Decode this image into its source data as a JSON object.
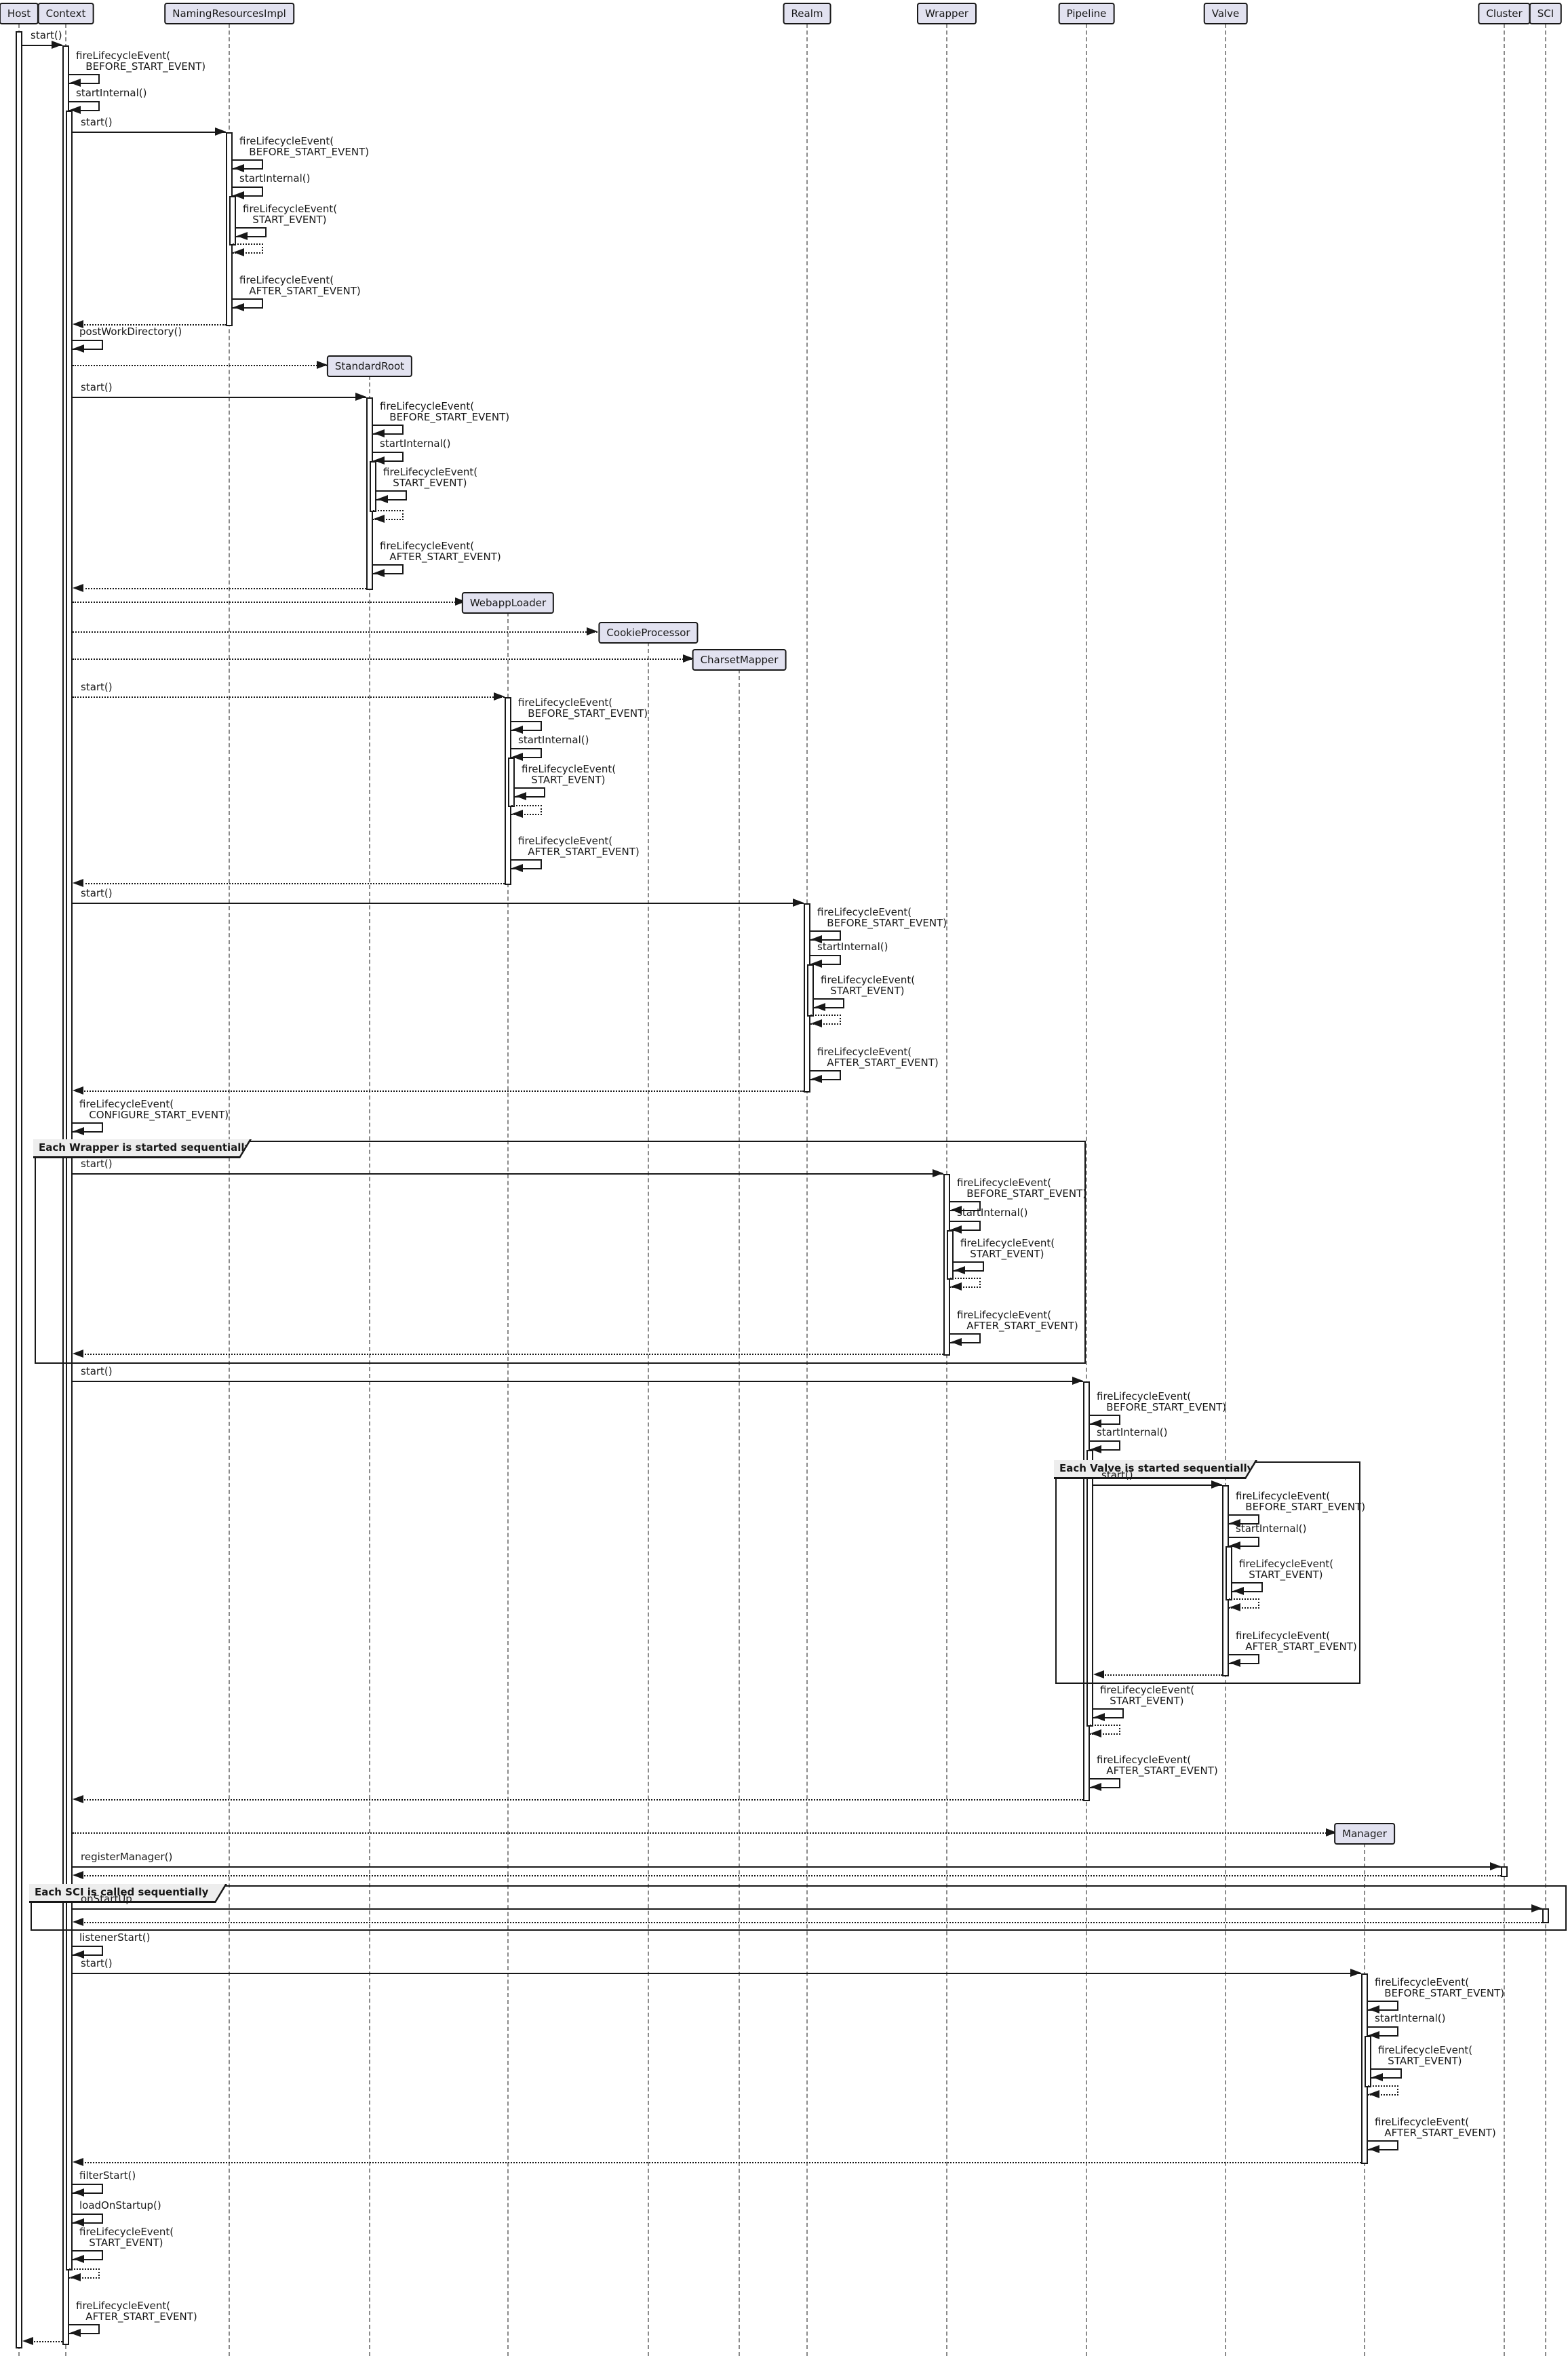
{
  "diagram": {
    "type": "uml-sequence",
    "participants": [
      {
        "name": "Host"
      },
      {
        "name": "Context"
      },
      {
        "name": "NamingResourcesImpl"
      },
      {
        "name": "Realm"
      },
      {
        "name": "Wrapper"
      },
      {
        "name": "Pipeline"
      },
      {
        "name": "Valve"
      },
      {
        "name": "Cluster"
      },
      {
        "name": "SCI"
      }
    ],
    "created": [
      {
        "name": "StandardRoot"
      },
      {
        "name": "WebappLoader"
      },
      {
        "name": "CookieProcessor"
      },
      {
        "name": "CharsetMapper"
      },
      {
        "name": "Manager"
      }
    ],
    "frames": [
      {
        "label": "Each Wrapper is started sequentially"
      },
      {
        "label": "Each Valve is started sequentially"
      },
      {
        "label": "Each SCI is called sequentially"
      }
    ],
    "colors": {
      "participant_fill": "#E2E2F0",
      "border": "#181818",
      "frame_label_fill": "#EDEDED",
      "background": "#FFFFFF"
    },
    "messages": [
      {
        "from": "Host",
        "to": "Context",
        "label": "start()",
        "kind": "call"
      },
      {
        "from": "Context",
        "to": "Context",
        "label": "fireLifecycleEvent(\n   BEFORE_START_EVENT)",
        "kind": "self"
      },
      {
        "from": "Context",
        "to": "Context",
        "label": "startInternal()",
        "kind": "self"
      },
      {
        "from": "Context",
        "to": "NamingResourcesImpl",
        "label": "start()",
        "kind": "call"
      },
      {
        "from": "NamingResourcesImpl",
        "to": "NamingResourcesImpl",
        "label": "fireLifecycleEvent(\n   BEFORE_START_EVENT)",
        "kind": "self"
      },
      {
        "from": "NamingResourcesImpl",
        "to": "NamingResourcesImpl",
        "label": "startInternal()",
        "kind": "self"
      },
      {
        "from": "NamingResourcesImpl",
        "to": "NamingResourcesImpl",
        "label": "fireLifecycleEvent(\n   START_EVENT)",
        "kind": "self"
      },
      {
        "from": "NamingResourcesImpl",
        "to": "NamingResourcesImpl",
        "label": "",
        "kind": "self-return"
      },
      {
        "from": "NamingResourcesImpl",
        "to": "NamingResourcesImpl",
        "label": "fireLifecycleEvent(\n   AFTER_START_EVENT)",
        "kind": "self"
      },
      {
        "from": "NamingResourcesImpl",
        "to": "Context",
        "label": "",
        "kind": "return"
      },
      {
        "from": "Context",
        "to": "Context",
        "label": "postWorkDirectory()",
        "kind": "self"
      },
      {
        "from": "Context",
        "to": "StandardRoot",
        "label": "",
        "kind": "create"
      },
      {
        "from": "Context",
        "to": "StandardRoot",
        "label": "start()",
        "kind": "call"
      },
      {
        "from": "StandardRoot",
        "to": "StandardRoot",
        "label": "fireLifecycleEvent(\n   BEFORE_START_EVENT)",
        "kind": "self"
      },
      {
        "from": "StandardRoot",
        "to": "StandardRoot",
        "label": "startInternal()",
        "kind": "self"
      },
      {
        "from": "StandardRoot",
        "to": "StandardRoot",
        "label": "fireLifecycleEvent(\n   START_EVENT)",
        "kind": "self"
      },
      {
        "from": "StandardRoot",
        "to": "StandardRoot",
        "label": "",
        "kind": "self-return"
      },
      {
        "from": "StandardRoot",
        "to": "StandardRoot",
        "label": "fireLifecycleEvent(\n   AFTER_START_EVENT)",
        "kind": "self"
      },
      {
        "from": "StandardRoot",
        "to": "Context",
        "label": "",
        "kind": "return"
      },
      {
        "from": "Context",
        "to": "WebappLoader",
        "label": "",
        "kind": "create"
      },
      {
        "from": "Context",
        "to": "CookieProcessor",
        "label": "",
        "kind": "create"
      },
      {
        "from": "Context",
        "to": "CharsetMapper",
        "label": "",
        "kind": "create"
      },
      {
        "from": "Context",
        "to": "WebappLoader",
        "label": "start()",
        "kind": "call-dotted"
      },
      {
        "from": "WebappLoader",
        "to": "WebappLoader",
        "label": "fireLifecycleEvent(\n   BEFORE_START_EVENT)",
        "kind": "self"
      },
      {
        "from": "WebappLoader",
        "to": "WebappLoader",
        "label": "startInternal()",
        "kind": "self"
      },
      {
        "from": "WebappLoader",
        "to": "WebappLoader",
        "label": "fireLifecycleEvent(\n   START_EVENT)",
        "kind": "self"
      },
      {
        "from": "WebappLoader",
        "to": "WebappLoader",
        "label": "",
        "kind": "self-return"
      },
      {
        "from": "WebappLoader",
        "to": "WebappLoader",
        "label": "fireLifecycleEvent(\n   AFTER_START_EVENT)",
        "kind": "self"
      },
      {
        "from": "WebappLoader",
        "to": "Context",
        "label": "",
        "kind": "return"
      },
      {
        "from": "Context",
        "to": "Realm",
        "label": "start()",
        "kind": "call"
      },
      {
        "from": "Realm",
        "to": "Realm",
        "label": "fireLifecycleEvent(\n   BEFORE_START_EVENT)",
        "kind": "self"
      },
      {
        "from": "Realm",
        "to": "Realm",
        "label": "startInternal()",
        "kind": "self"
      },
      {
        "from": "Realm",
        "to": "Realm",
        "label": "fireLifecycleEvent(\n   START_EVENT)",
        "kind": "self"
      },
      {
        "from": "Realm",
        "to": "Realm",
        "label": "",
        "kind": "self-return"
      },
      {
        "from": "Realm",
        "to": "Realm",
        "label": "fireLifecycleEvent(\n   AFTER_START_EVENT)",
        "kind": "self"
      },
      {
        "from": "Realm",
        "to": "Context",
        "label": "",
        "kind": "return"
      },
      {
        "from": "Context",
        "to": "Context",
        "label": "fireLifecycleEvent(\n   CONFIGURE_START_EVENT)",
        "kind": "self"
      },
      {
        "from": "Context",
        "to": "Wrapper",
        "label": "start()",
        "kind": "call"
      },
      {
        "from": "Wrapper",
        "to": "Wrapper",
        "label": "fireLifecycleEvent(\n   BEFORE_START_EVENT)",
        "kind": "self"
      },
      {
        "from": "Wrapper",
        "to": "Wrapper",
        "label": "startInternal()",
        "kind": "self"
      },
      {
        "from": "Wrapper",
        "to": "Wrapper",
        "label": "fireLifecycleEvent(\n   START_EVENT)",
        "kind": "self"
      },
      {
        "from": "Wrapper",
        "to": "Wrapper",
        "label": "",
        "kind": "self-return"
      },
      {
        "from": "Wrapper",
        "to": "Wrapper",
        "label": "fireLifecycleEvent(\n   AFTER_START_EVENT)",
        "kind": "self"
      },
      {
        "from": "Wrapper",
        "to": "Context",
        "label": "",
        "kind": "return"
      },
      {
        "from": "Context",
        "to": "Pipeline",
        "label": "start()",
        "kind": "call"
      },
      {
        "from": "Pipeline",
        "to": "Pipeline",
        "label": "fireLifecycleEvent(\n   BEFORE_START_EVENT)",
        "kind": "self"
      },
      {
        "from": "Pipeline",
        "to": "Pipeline",
        "label": "startInternal()",
        "kind": "self"
      },
      {
        "from": "Pipeline",
        "to": "Valve",
        "label": "start()",
        "kind": "call"
      },
      {
        "from": "Valve",
        "to": "Valve",
        "label": "fireLifecycleEvent(\n   BEFORE_START_EVENT)",
        "kind": "self"
      },
      {
        "from": "Valve",
        "to": "Valve",
        "label": "startInternal()",
        "kind": "self"
      },
      {
        "from": "Valve",
        "to": "Valve",
        "label": "fireLifecycleEvent(\n   START_EVENT)",
        "kind": "self"
      },
      {
        "from": "Valve",
        "to": "Valve",
        "label": "",
        "kind": "self-return"
      },
      {
        "from": "Valve",
        "to": "Valve",
        "label": "fireLifecycleEvent(\n   AFTER_START_EVENT)",
        "kind": "self"
      },
      {
        "from": "Valve",
        "to": "Pipeline",
        "label": "",
        "kind": "return"
      },
      {
        "from": "Pipeline",
        "to": "Pipeline",
        "label": "fireLifecycleEvent(\n   START_EVENT)",
        "kind": "self"
      },
      {
        "from": "Pipeline",
        "to": "Pipeline",
        "label": "",
        "kind": "self-return"
      },
      {
        "from": "Pipeline",
        "to": "Pipeline",
        "label": "fireLifecycleEvent(\n   AFTER_START_EVENT)",
        "kind": "self"
      },
      {
        "from": "Pipeline",
        "to": "Context",
        "label": "",
        "kind": "return"
      },
      {
        "from": "Context",
        "to": "Manager",
        "label": "",
        "kind": "create"
      },
      {
        "from": "Context",
        "to": "Cluster",
        "label": "registerManager()",
        "kind": "call"
      },
      {
        "from": "Cluster",
        "to": "Context",
        "label": "",
        "kind": "return"
      },
      {
        "from": "Context",
        "to": "SCI",
        "label": "onStartUp",
        "kind": "call"
      },
      {
        "from": "SCI",
        "to": "Context",
        "label": "",
        "kind": "return"
      },
      {
        "from": "Context",
        "to": "Context",
        "label": "listenerStart()",
        "kind": "self"
      },
      {
        "from": "Context",
        "to": "Manager",
        "label": "start()",
        "kind": "call"
      },
      {
        "from": "Manager",
        "to": "Manager",
        "label": "fireLifecycleEvent(\n   BEFORE_START_EVENT)",
        "kind": "self"
      },
      {
        "from": "Manager",
        "to": "Manager",
        "label": "startInternal()",
        "kind": "self"
      },
      {
        "from": "Manager",
        "to": "Manager",
        "label": "fireLifecycleEvent(\n   START_EVENT)",
        "kind": "self"
      },
      {
        "from": "Manager",
        "to": "Manager",
        "label": "",
        "kind": "self-return"
      },
      {
        "from": "Manager",
        "to": "Manager",
        "label": "fireLifecycleEvent(\n   AFTER_START_EVENT)",
        "kind": "self"
      },
      {
        "from": "Manager",
        "to": "Context",
        "label": "",
        "kind": "return"
      },
      {
        "from": "Context",
        "to": "Context",
        "label": "filterStart()",
        "kind": "self"
      },
      {
        "from": "Context",
        "to": "Context",
        "label": "loadOnStartup()",
        "kind": "self"
      },
      {
        "from": "Context",
        "to": "Context",
        "label": "fireLifecycleEvent(\n   START_EVENT)",
        "kind": "self"
      },
      {
        "from": "Context",
        "to": "Context",
        "label": "",
        "kind": "self-return"
      },
      {
        "from": "Context",
        "to": "Context",
        "label": "fireLifecycleEvent(\n   AFTER_START_EVENT)",
        "kind": "self"
      },
      {
        "from": "Context",
        "to": "Host",
        "label": "",
        "kind": "return"
      }
    ]
  }
}
